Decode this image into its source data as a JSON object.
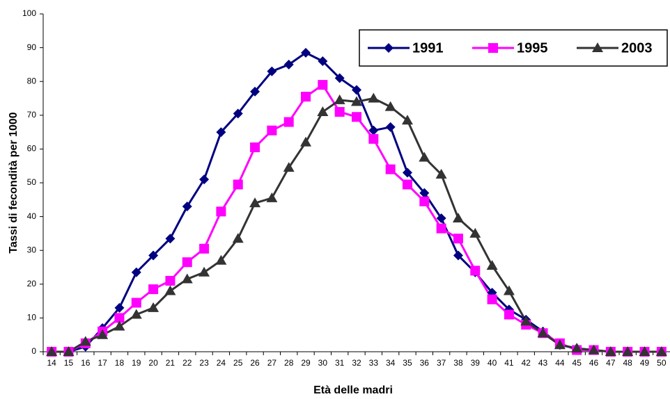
{
  "chart_data": {
    "type": "line",
    "x_label": "Età delle madri",
    "y_label": "Tassi di fecondità per 1000",
    "categories": [
      14,
      15,
      16,
      17,
      18,
      19,
      20,
      21,
      22,
      23,
      24,
      25,
      26,
      27,
      28,
      29,
      30,
      31,
      32,
      33,
      34,
      35,
      36,
      37,
      38,
      39,
      40,
      41,
      42,
      43,
      44,
      45,
      46,
      47,
      48,
      49,
      50
    ],
    "series": [
      {
        "name": "1991",
        "color": "#000080",
        "marker": "diamond",
        "values": [
          0,
          0,
          1.5,
          7,
          13,
          23.5,
          28.5,
          33.5,
          43,
          51,
          65,
          70.5,
          77,
          83,
          85,
          88.5,
          86,
          81,
          77.5,
          65.5,
          66.5,
          53,
          47,
          39.5,
          28.5,
          23.5,
          17.5,
          12.5,
          9.5,
          6,
          2,
          1,
          0.5,
          0,
          0,
          0,
          0
        ]
      },
      {
        "name": "1995",
        "color": "#ff00ff",
        "marker": "square",
        "values": [
          0,
          0,
          2.5,
          6,
          10,
          14.5,
          18.5,
          21,
          26.5,
          30.5,
          41.5,
          49.5,
          60.5,
          65.5,
          68,
          75.5,
          79,
          71,
          69.5,
          63,
          54,
          49.5,
          44.5,
          36.5,
          33.5,
          24,
          15.5,
          11,
          8,
          5.5,
          2.5,
          0.5,
          0.5,
          0,
          0,
          0,
          0
        ]
      },
      {
        "name": "2003",
        "color": "#333333",
        "marker": "triangle",
        "values": [
          0,
          0,
          3,
          5,
          7.5,
          11,
          13,
          18,
          21.5,
          23.5,
          27,
          33.5,
          44,
          45.5,
          54.5,
          62,
          71,
          74.5,
          74,
          75,
          72.5,
          68.5,
          57.5,
          52.5,
          39.5,
          35,
          25.5,
          18,
          9,
          5.5,
          2,
          1,
          0.5,
          0,
          0,
          0,
          0
        ]
      }
    ],
    "ylim": [
      0,
      100
    ],
    "yticks": [
      0,
      10,
      20,
      30,
      40,
      50,
      60,
      70,
      80,
      90,
      100
    ],
    "legend": "top-right"
  }
}
